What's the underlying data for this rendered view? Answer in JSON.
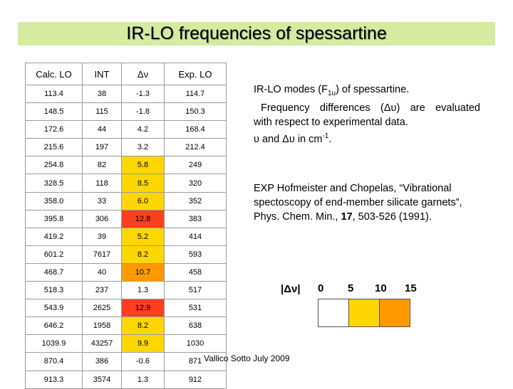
{
  "title": "IR-LO frequencies of spessartine",
  "table": {
    "headers": [
      "Calc. LO",
      "INT",
      "Δν",
      "Exp. LO"
    ],
    "rows": [
      {
        "calc": "113.4",
        "int": "38",
        "dv": "-1.3",
        "exp": "114.7",
        "color": "#ffffff"
      },
      {
        "calc": "148.5",
        "int": "115",
        "dv": "-1.8",
        "exp": "150.3",
        "color": "#ffffff"
      },
      {
        "calc": "172.6",
        "int": "44",
        "dv": "4.2",
        "exp": "168.4",
        "color": "#ffffff"
      },
      {
        "calc": "215.6",
        "int": "197",
        "dv": "3.2",
        "exp": "212.4",
        "color": "#ffffff"
      },
      {
        "calc": "254.8",
        "int": "82",
        "dv": "5.8",
        "exp": "249",
        "color": "#ffd700"
      },
      {
        "calc": "328.5",
        "int": "118",
        "dv": "8.5",
        "exp": "320",
        "color": "#ffd700"
      },
      {
        "calc": "358.0",
        "int": "33",
        "dv": "6.0",
        "exp": "352",
        "color": "#ffd700"
      },
      {
        "calc": "395.8",
        "int": "306",
        "dv": "12.8",
        "exp": "383",
        "color": "#ff3d1f"
      },
      {
        "calc": "419.2",
        "int": "39",
        "dv": "5.2",
        "exp": "414",
        "color": "#ffd700"
      },
      {
        "calc": "601.2",
        "int": "7617",
        "dv": "8.2",
        "exp": "593",
        "color": "#ffd700"
      },
      {
        "calc": "468.7",
        "int": "40",
        "dv": "10.7",
        "exp": "458",
        "color": "#ff9900"
      },
      {
        "calc": "518.3",
        "int": "237",
        "dv": "1.3",
        "exp": "517",
        "color": "#ffffff"
      },
      {
        "calc": "543.9",
        "int": "2625",
        "dv": "12.9",
        "exp": "531",
        "color": "#ff3d1f"
      },
      {
        "calc": "646.2",
        "int": "1958",
        "dv": "8.2",
        "exp": "638",
        "color": "#ffd700"
      },
      {
        "calc": "1039.9",
        "int": "43257",
        "dv": "9.9",
        "exp": "1030",
        "color": "#ffd700"
      },
      {
        "calc": "870.4",
        "int": "386",
        "dv": "-0.6",
        "exp": "871",
        "color": "#ffffff"
      },
      {
        "calc": "913.3",
        "int": "3574",
        "dv": "1.3",
        "exp": "912",
        "color": "#ffffff"
      }
    ]
  },
  "description": {
    "line1_pre": "IR-LO modes (F",
    "line1_sub": "1u",
    "line1_post": ") of spessartine.",
    "line2": "Frequency differences (Δυ) are evaluated",
    "line3": "with respect to experimental data.",
    "line4_pre": "υ and Δυ in cm",
    "line4_sup": "-1",
    "line4_post": "."
  },
  "reference": {
    "line1": "EXP Hofmeister and Chopelas, “Vibrational",
    "line2": "spectoscopy of end-member silicate garnets”,",
    "line3_pre": "Phys. Chem. Min., ",
    "line3_bold": "17",
    "line3_post": ", 503-526 (1991)."
  },
  "legend": {
    "label": "|Δν|",
    "ticks": [
      "0",
      "5",
      "10",
      "15"
    ],
    "colors": [
      "#ffffff",
      "#ffd700",
      "#ff9900",
      "#ff3d1f"
    ]
  },
  "footer": "Vallico Sotto July 2009"
}
